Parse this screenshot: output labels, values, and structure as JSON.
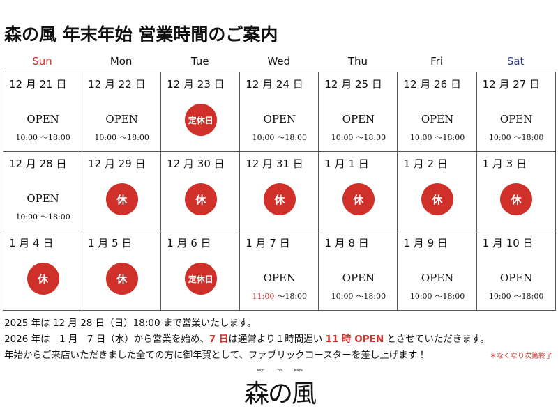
{
  "header": {
    "title": "森の風 年末年始 営業時間のご案内"
  },
  "weekdays": [
    {
      "label": "Sun",
      "color": "#d0302a"
    },
    {
      "label": "Mon"
    },
    {
      "label": "Tue"
    },
    {
      "label": "Wed"
    },
    {
      "label": "Thu"
    },
    {
      "label": "Fri"
    },
    {
      "label": "Sat",
      "color": "#2a3a8c"
    }
  ],
  "weeks": [
    [
      {
        "date": "12 月 21 日",
        "status": "OPEN",
        "hours": [
          "10:00",
          "〜18:00"
        ]
      },
      {
        "date": "12 月 22 日",
        "status": "OPEN",
        "hours": [
          "10:00",
          "〜18:00"
        ]
      },
      {
        "date": "12 月 23 日",
        "badge": "定休日"
      },
      {
        "date": "12 月 24 日",
        "status": "OPEN",
        "hours": [
          "10:00",
          "〜18:00"
        ]
      },
      {
        "date": "12 月 25 日",
        "status": "OPEN",
        "hours": [
          "10:00",
          "〜18:00"
        ]
      },
      {
        "date": "12 月 26 日",
        "status": "OPEN",
        "hours": [
          "10:00",
          "〜18:00"
        ]
      },
      {
        "date": "12 月 27 日",
        "status": "OPEN",
        "hours": [
          "10:00",
          "〜18:00"
        ]
      }
    ],
    [
      {
        "date": "12 月 28 日",
        "status": "OPEN",
        "hours": [
          "10:00",
          "〜18:00"
        ]
      },
      {
        "date": "12 月 29 日",
        "badge": "休"
      },
      {
        "date": "12 月 30 日",
        "badge": "休"
      },
      {
        "date": "12 月 31 日",
        "badge": "休"
      },
      {
        "date": "1 月 1 日",
        "badge": "休"
      },
      {
        "date": "1 月 2 日",
        "badge": "休"
      },
      {
        "date": "1 月 3 日",
        "badge": "休"
      }
    ],
    [
      {
        "date": "1 月 4 日",
        "badge": "休"
      },
      {
        "date": "1 月 5 日",
        "badge": "休"
      },
      {
        "date": "1 月 6 日",
        "badge": "定休日"
      },
      {
        "date": "1 月 7 日",
        "status": "OPEN",
        "hours": [
          "11:00",
          "〜18:00"
        ],
        "start_color": "#d0302a"
      },
      {
        "date": "1 月 8 日",
        "status": "OPEN",
        "hours": [
          "10:00",
          "〜18:00"
        ]
      },
      {
        "date": "1 月 9 日",
        "status": "OPEN",
        "hours": [
          "10:00",
          "〜18:00"
        ]
      },
      {
        "date": "1 月 10 日",
        "status": "OPEN",
        "hours": [
          "10:00",
          "〜18:00"
        ]
      }
    ]
  ],
  "notes": [
    {
      "segments": [
        {
          "text": "2025 年は 12 月 28 日（日）18:00 まで営業いたします。"
        }
      ]
    },
    {
      "segments": [
        {
          "text": "2026 年は　1 月　7 日（水）から営業を始め、"
        },
        {
          "text": "7 日",
          "color": "#d0302a"
        },
        {
          "text": "は通常より１時間遅い "
        },
        {
          "text": "11 時 OPEN",
          "color": "#d0302a"
        },
        {
          "text": " とさせていただきます。"
        }
      ]
    },
    {
      "segments": [
        {
          "text": "年始からご来店いただきました全ての方に御年賀として、ファブリックコースターを差し上げます！"
        }
      ],
      "aside": "＊なくなり次第終了"
    }
  ],
  "logo": {
    "ruby": [
      "Mori",
      "no",
      "Kaze"
    ],
    "text": "森の風"
  }
}
